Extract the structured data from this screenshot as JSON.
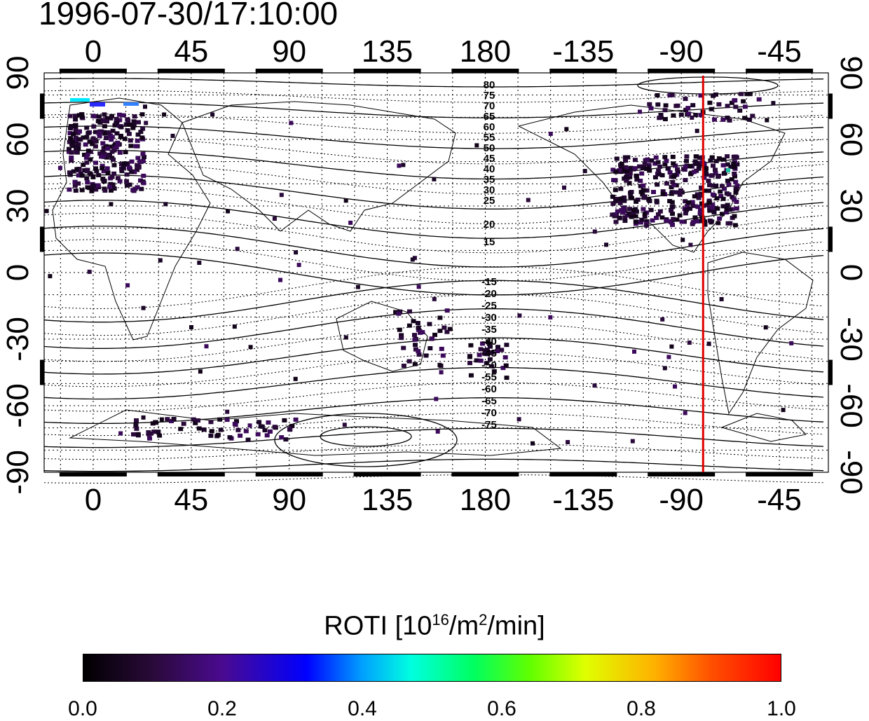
{
  "title": "1996-07-30/17:10:00",
  "map": {
    "top_lon_labels": [
      "0",
      "45",
      "90",
      "135",
      "180",
      "-135",
      "-90",
      "-45"
    ],
    "bottom_lon_labels": [
      "0",
      "45",
      "90",
      "135",
      "180",
      "-135",
      "-90",
      "-45"
    ],
    "left_lat_labels": [
      "90",
      "60",
      "30",
      "0",
      "-30",
      "-60",
      "-90"
    ],
    "right_lat_labels": [
      "90",
      "60",
      "30",
      "0",
      "-30",
      "-60",
      "-90"
    ],
    "north_contour_labels": [
      "80",
      "75",
      "70",
      "65",
      "60",
      "55",
      "50",
      "45",
      "40",
      "35",
      "30",
      "25",
      "20",
      "15"
    ],
    "south_contour_labels": [
      "-15",
      "-20",
      "-25",
      "-30",
      "-35",
      "-40",
      "-45",
      "-50",
      "-55",
      "-60",
      "-65",
      "-70",
      "-75"
    ],
    "marker_line_color": "#e00000",
    "marker_line_lon": -80
  },
  "colorbar": {
    "label_main": "ROTI  [10",
    "label_sup1": "16",
    "label_mid": "/m",
    "label_sup2": "2",
    "label_end": "/min]",
    "ticks": [
      "0.0",
      "0.2",
      "0.4",
      "0.6",
      "0.8",
      "1.0"
    ],
    "range": [
      0.0,
      1.0
    ]
  }
}
